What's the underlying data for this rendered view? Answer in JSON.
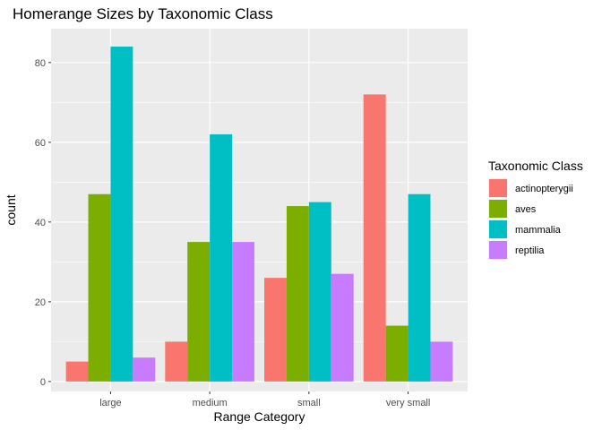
{
  "chart_data": {
    "type": "bar",
    "title": "Homerange Sizes by Taxonomic Class",
    "xlabel": "Range Category",
    "ylabel": "count",
    "categories": [
      "large",
      "medium",
      "small",
      "very small"
    ],
    "series": [
      {
        "name": "actinopterygii",
        "color": "#F8766D",
        "values": [
          5,
          10,
          26,
          72
        ]
      },
      {
        "name": "aves",
        "color": "#7CAE00",
        "values": [
          47,
          35,
          44,
          14
        ]
      },
      {
        "name": "mammalia",
        "color": "#00BFC4",
        "values": [
          84,
          62,
          45,
          47
        ]
      },
      {
        "name": "reptilia",
        "color": "#C77CFF",
        "values": [
          6,
          35,
          27,
          10
        ]
      }
    ],
    "ylim": [
      -2.5,
      88.5
    ],
    "yticks": [
      0,
      20,
      40,
      60,
      80
    ],
    "grid": true,
    "legend": {
      "title": "Taxonomic Class",
      "position": "right"
    },
    "panel_background": "#EBEBEB"
  }
}
